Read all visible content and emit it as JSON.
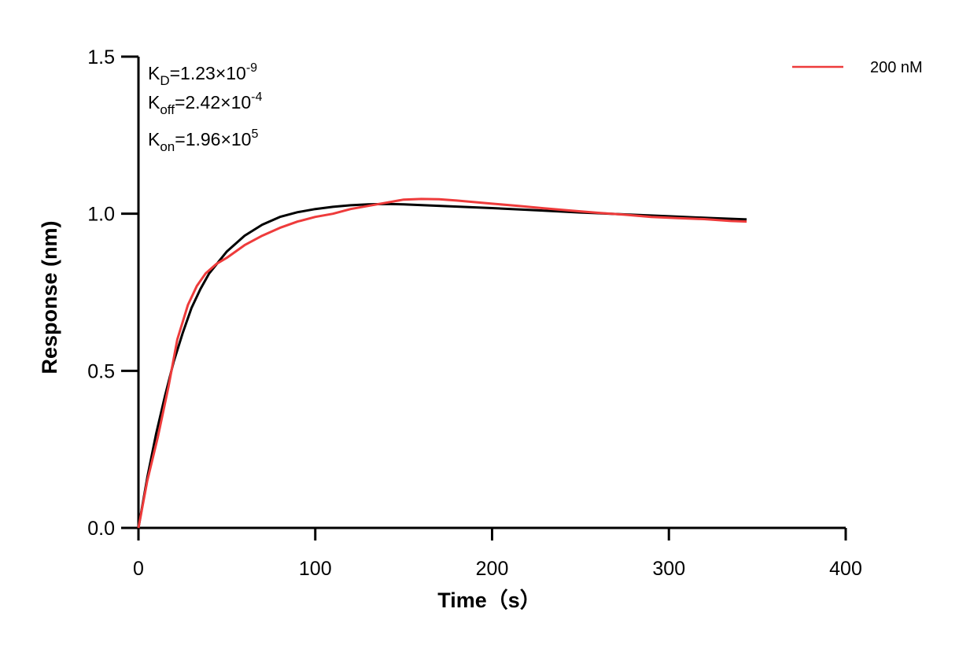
{
  "chart_data": {
    "type": "line",
    "xlabel": "Time（s）",
    "ylabel": "Response (nm)",
    "xlim": [
      0,
      400
    ],
    "ylim": [
      0,
      1.5
    ],
    "xticks": [
      0,
      100,
      200,
      300,
      400
    ],
    "xtick_labels": [
      "0",
      "100",
      "200",
      "300",
      "400"
    ],
    "yticks": [
      0,
      0.5,
      1.0,
      1.5
    ],
    "ytick_labels": [
      "0.0",
      "0.5",
      "1.0",
      "1.5"
    ],
    "grid": false,
    "legend_position": "top-right",
    "annotations": [
      {
        "main": "K",
        "sub": "D",
        "rest": "=1.23×10",
        "sup": "-9"
      },
      {
        "main": "K",
        "sub": "off",
        "rest": "=2.42×10",
        "sup": "-4"
      },
      {
        "main": "K",
        "sub": "on",
        "rest": "=1.96×10",
        "sup": "5"
      }
    ],
    "series": [
      {
        "name": "200 nM",
        "color": "#ee3b3b",
        "x": [
          0,
          5,
          11,
          17,
          22,
          28,
          33,
          38,
          44,
          50,
          60,
          70,
          80,
          90,
          100,
          110,
          120,
          130,
          140,
          150,
          160,
          170,
          180,
          190,
          200,
          215,
          230,
          245,
          260,
          275,
          290,
          305,
          320,
          335,
          344
        ],
        "y": [
          0,
          0.15,
          0.29,
          0.45,
          0.6,
          0.71,
          0.77,
          0.81,
          0.84,
          0.86,
          0.9,
          0.93,
          0.955,
          0.975,
          0.99,
          1.0,
          1.015,
          1.025,
          1.035,
          1.045,
          1.047,
          1.046,
          1.042,
          1.037,
          1.032,
          1.025,
          1.017,
          1.01,
          1.003,
          0.997,
          0.99,
          0.986,
          0.983,
          0.977,
          0.975
        ]
      },
      {
        "color": "#000000",
        "x": [
          0,
          5,
          10,
          15,
          20,
          25,
          30,
          35,
          40,
          50,
          60,
          70,
          80,
          90,
          100,
          110,
          120,
          130,
          140,
          150,
          175,
          200,
          225,
          250,
          275,
          300,
          325,
          344
        ],
        "y": [
          0,
          0.16,
          0.3,
          0.42,
          0.53,
          0.62,
          0.7,
          0.76,
          0.81,
          0.88,
          0.93,
          0.965,
          0.99,
          1.005,
          1.015,
          1.022,
          1.027,
          1.03,
          1.031,
          1.03,
          1.024,
          1.018,
          1.011,
          1.004,
          0.998,
          0.992,
          0.986,
          0.982
        ]
      }
    ]
  }
}
